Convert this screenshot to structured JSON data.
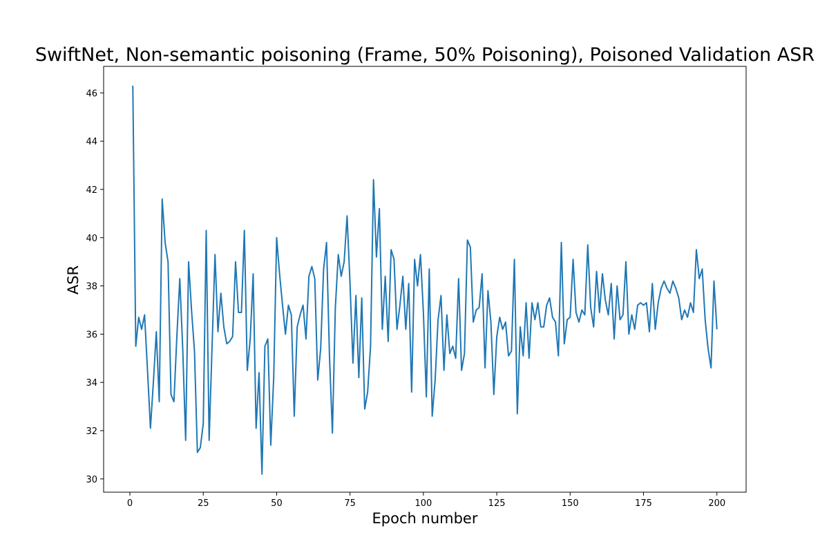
{
  "chart_data": {
    "type": "line",
    "title": "SwiftNet, Non-semantic poisoning (Frame, 50% Poisoning), Poisoned Validation ASR",
    "xlabel": "Epoch number",
    "ylabel": "ASR",
    "xlim": [
      -8.95,
      209.95
    ],
    "ylim": [
      29.45,
      47.1
    ],
    "xticks": [
      0,
      25,
      50,
      75,
      100,
      125,
      150,
      175,
      200
    ],
    "yticks": [
      30,
      32,
      34,
      36,
      38,
      40,
      42,
      44,
      46
    ],
    "grid": false,
    "legend": "none",
    "series": [
      {
        "color": "#1f77b4",
        "x": [
          1,
          2,
          3,
          4,
          5,
          6,
          7,
          8,
          9,
          10,
          11,
          12,
          13,
          14,
          15,
          16,
          17,
          18,
          19,
          20,
          21,
          22,
          23,
          24,
          25,
          26,
          27,
          28,
          29,
          30,
          31,
          32,
          33,
          34,
          35,
          36,
          37,
          38,
          39,
          40,
          41,
          42,
          43,
          44,
          45,
          46,
          47,
          48,
          49,
          50,
          51,
          52,
          53,
          54,
          55,
          56,
          57,
          58,
          59,
          60,
          61,
          62,
          63,
          64,
          65,
          66,
          67,
          68,
          69,
          70,
          71,
          72,
          73,
          74,
          75,
          76,
          77,
          78,
          79,
          80,
          81,
          82,
          83,
          84,
          85,
          86,
          87,
          88,
          89,
          90,
          91,
          92,
          93,
          94,
          95,
          96,
          97,
          98,
          99,
          100,
          101,
          102,
          103,
          104,
          105,
          106,
          107,
          108,
          109,
          110,
          111,
          112,
          113,
          114,
          115,
          116,
          117,
          118,
          119,
          120,
          121,
          122,
          123,
          124,
          125,
          126,
          127,
          128,
          129,
          130,
          131,
          132,
          133,
          134,
          135,
          136,
          137,
          138,
          139,
          140,
          141,
          142,
          143,
          144,
          145,
          146,
          147,
          148,
          149,
          150,
          151,
          152,
          153,
          154,
          155,
          156,
          157,
          158,
          159,
          160,
          161,
          162,
          163,
          164,
          165,
          166,
          167,
          168,
          169,
          170,
          171,
          172,
          173,
          174,
          175,
          176,
          177,
          178,
          179,
          180,
          181,
          182,
          183,
          184,
          185,
          186,
          187,
          188,
          189,
          190,
          191,
          192,
          193,
          194,
          195,
          196,
          197,
          198,
          199,
          200
        ],
        "y": [
          46.3,
          35.5,
          36.7,
          36.2,
          36.8,
          34.5,
          32.1,
          34.0,
          36.1,
          33.2,
          41.6,
          39.8,
          39.0,
          33.5,
          33.2,
          35.9,
          38.3,
          35.4,
          31.6,
          39.0,
          37.0,
          35.3,
          31.1,
          31.3,
          32.3,
          40.3,
          31.6,
          35.5,
          39.3,
          36.1,
          37.7,
          36.3,
          35.6,
          35.7,
          35.9,
          39.0,
          36.9,
          36.9,
          40.3,
          34.5,
          35.8,
          38.5,
          32.1,
          34.4,
          30.2,
          35.5,
          35.8,
          31.4,
          34.2,
          40.0,
          38.5,
          37.2,
          36.0,
          37.2,
          36.8,
          32.6,
          36.3,
          36.8,
          37.2,
          35.8,
          38.4,
          38.8,
          38.3,
          34.1,
          35.4,
          38.7,
          39.8,
          35.1,
          31.9,
          37.1,
          39.3,
          38.4,
          39.0,
          40.9,
          38.1,
          34.8,
          37.6,
          34.2,
          37.5,
          32.9,
          33.6,
          35.5,
          42.4,
          39.2,
          41.2,
          36.2,
          38.4,
          35.7,
          39.5,
          39.1,
          36.2,
          37.2,
          38.4,
          36.2,
          38.1,
          33.6,
          39.1,
          38.0,
          39.3,
          36.9,
          33.4,
          38.7,
          32.6,
          34.1,
          36.6,
          37.6,
          34.5,
          36.8,
          35.2,
          35.5,
          35.0,
          38.3,
          34.5,
          35.2,
          39.9,
          39.6,
          36.5,
          37.0,
          37.1,
          38.5,
          34.6,
          37.8,
          36.5,
          33.5,
          35.9,
          36.7,
          36.2,
          36.5,
          35.1,
          35.3,
          39.1,
          32.7,
          36.3,
          35.1,
          37.3,
          35.0,
          37.3,
          36.6,
          37.3,
          36.3,
          36.3,
          37.2,
          37.5,
          36.7,
          36.5,
          35.1,
          39.8,
          35.6,
          36.6,
          36.7,
          39.1,
          36.9,
          36.5,
          37.0,
          36.8,
          39.7,
          37.1,
          36.3,
          38.6,
          36.9,
          38.5,
          37.4,
          36.8,
          38.1,
          35.8,
          38.0,
          36.6,
          36.8,
          39.0,
          36.0,
          36.8,
          36.2,
          37.2,
          37.3,
          37.2,
          37.3,
          36.1,
          38.1,
          36.2,
          37.3,
          37.9,
          38.2,
          37.9,
          37.7,
          38.2,
          37.9,
          37.5,
          36.6,
          37.0,
          36.7,
          37.3,
          36.9,
          39.5,
          38.3,
          38.7,
          36.6,
          35.4,
          34.6,
          38.2,
          36.2
        ]
      }
    ]
  }
}
